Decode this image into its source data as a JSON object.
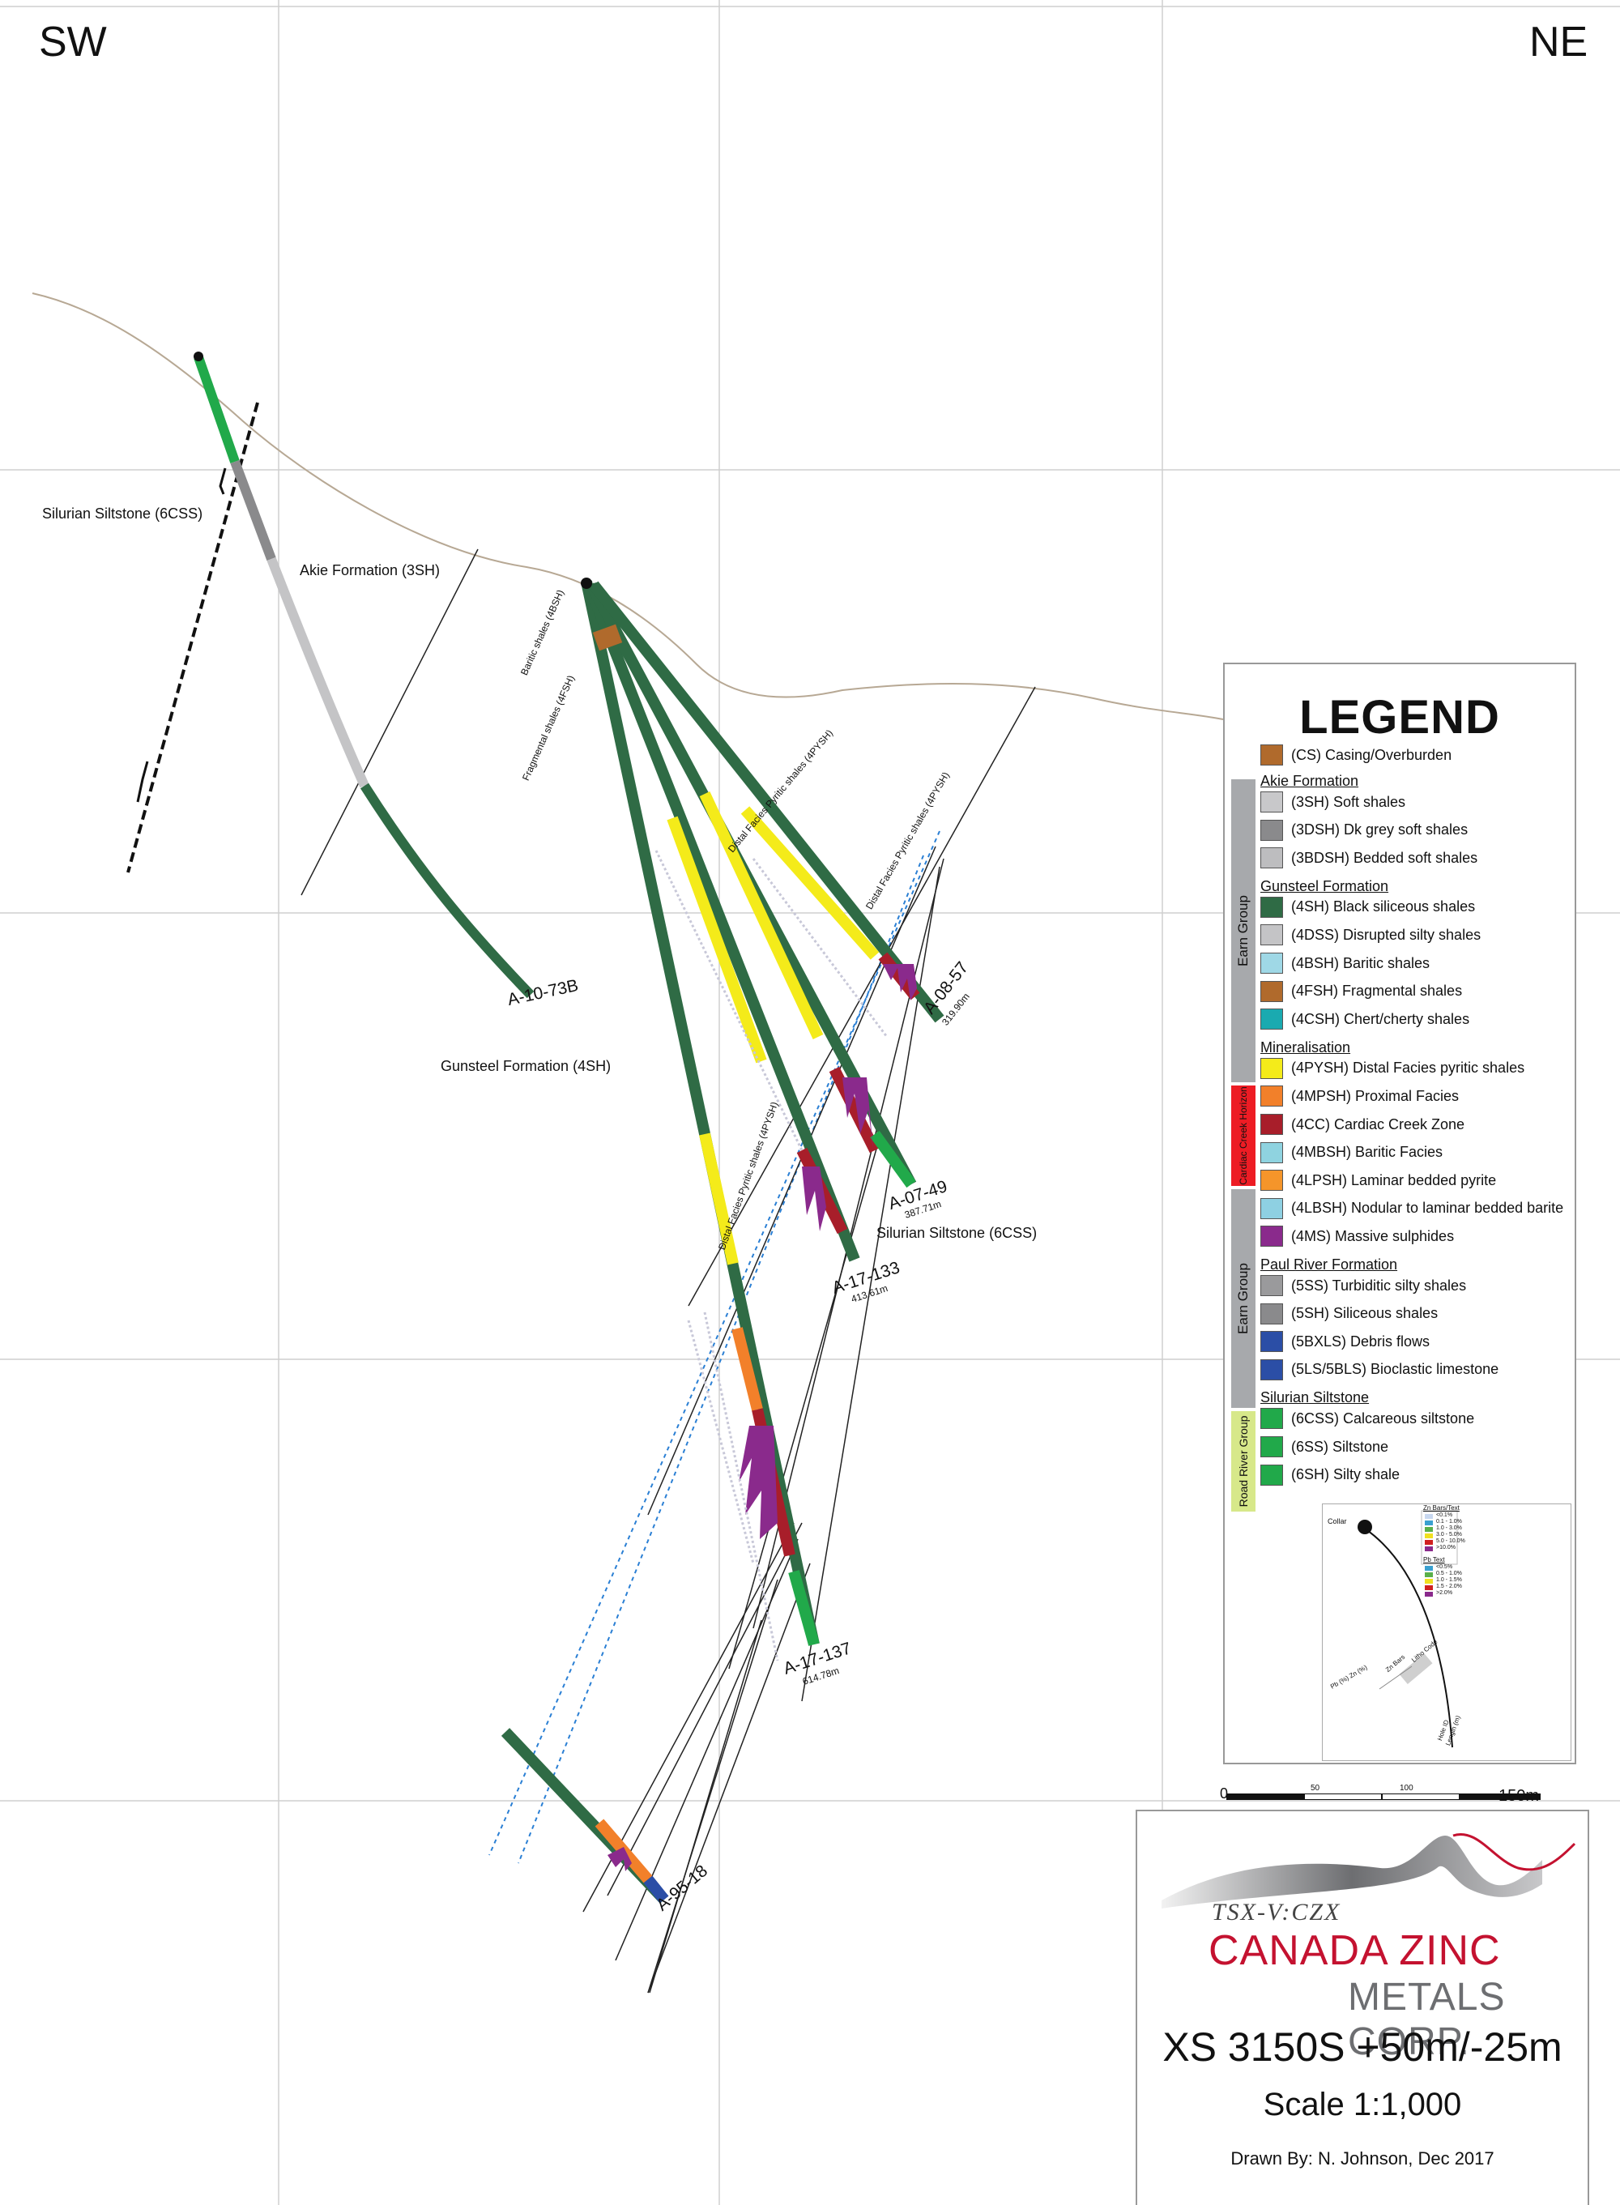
{
  "corners": {
    "left": "SW",
    "right": "NE"
  },
  "labels": {
    "silurian_top": "Silurian Siltstone (6CSS)",
    "akie": "Akie Formation (3SH)",
    "gunsteel": "Gunsteel Formation (4SH)",
    "silurian_right": "Silurian Siltstone (6CSS)",
    "baritic": "Baritic shales (4BSH)",
    "fragmental": "Fragmental shales (4FSH)",
    "distal1": "Distal Facies Pyritic shales (4PYSH)",
    "distal2": "Distal Facies Pyritic shales (4PYSH)",
    "distal3": "Distal Facies Pyritic shales (4PYSH)"
  },
  "holes": [
    {
      "id": "A-10-73B",
      "length": ""
    },
    {
      "id": "A-08-57",
      "length": "319.90m"
    },
    {
      "id": "A-07-49",
      "length": "387.71m"
    },
    {
      "id": "A-17-133",
      "length": "413.61m"
    },
    {
      "id": "A-17-137",
      "length": "614.78m"
    },
    {
      "id": "A-95-18",
      "length": ""
    }
  ],
  "legend": {
    "title": "LEGEND",
    "casing": {
      "label": "(CS) Casing/Overburden",
      "color": "#b06a2c"
    },
    "groups": {
      "earn1": "Earn Group",
      "cardiac": "Cardiac Creek Horizon",
      "earn2": "Earn Group",
      "road": "Road River Group"
    },
    "sections": [
      {
        "heading": "Akie Formation",
        "items": [
          {
            "label": "(3SH) Soft shales",
            "color": "#c8c8ca"
          },
          {
            "label": "(3DSH) Dk grey soft shales",
            "color": "#8a8a8c"
          },
          {
            "label": "(3BDSH) Bedded soft shales",
            "color": "#bdbdbf"
          }
        ]
      },
      {
        "heading": "Gunsteel Formation",
        "items": [
          {
            "label": "(4SH) Black siliceous shales",
            "color": "#2f6b45"
          },
          {
            "label": "(4DSS) Disrupted silty shales",
            "color": "#c4c4c6"
          },
          {
            "label": "(4BSH) Baritic shales",
            "color": "#9fd8e6"
          },
          {
            "label": "(4FSH) Fragmental shales",
            "color": "#b06a2c"
          },
          {
            "label": "(4CSH) Chert/cherty shales",
            "color": "#1aaab0"
          }
        ]
      },
      {
        "heading": "Mineralisation",
        "items": [
          {
            "label": "(4PYSH) Distal Facies pyritic shales",
            "color": "#f4eb1a"
          },
          {
            "label": "(4MPSH) Proximal Facies",
            "color": "#f2802a"
          },
          {
            "label": "(4CC) Cardiac Creek Zone",
            "color": "#a81e2a"
          },
          {
            "label": "(4MBSH) Baritic Facies",
            "color": "#8fd3e0"
          },
          {
            "label": "(4LPSH) Laminar bedded pyrite",
            "color": "#f5952a"
          },
          {
            "label": "(4LBSH) Nodular to laminar bedded barite",
            "color": "#8ed0e2"
          },
          {
            "label": "(4MS) Massive sulphides",
            "color": "#8a2a8c"
          }
        ]
      },
      {
        "heading": "Paul River Formation",
        "items": [
          {
            "label": "(5SS) Turbiditic silty shales",
            "color": "#9a9a9c"
          },
          {
            "label": "(5SH) Siliceous shales",
            "color": "#8a8a8c"
          },
          {
            "label": "(5BXLS) Debris flows",
            "color": "#2b4ea6"
          },
          {
            "label": "(5LS/5BLS) Bioclastic limestone",
            "color": "#2b4ea6"
          }
        ]
      },
      {
        "heading": "Silurian Siltstone",
        "items": [
          {
            "label": "(6CSS) Calcareous siltstone",
            "color": "#21a94a"
          },
          {
            "label": "(6SS) Siltstone",
            "color": "#21a94a"
          },
          {
            "label": "(6SH) Silty shale",
            "color": "#21a94a"
          }
        ]
      }
    ]
  },
  "inset": {
    "collar": "Collar",
    "zn_title": "Zn Bars/Text",
    "zn": [
      "<0.1%",
      "0.1 - 1.0%",
      "1.0 - 3.0%",
      "3.0 - 5.0%",
      "5.0 - 10.0%",
      ">10.0%"
    ],
    "pb_title": "Pb Text",
    "pb": [
      "<0.5%",
      "0.5 - 1.0%",
      "1.0 - 1.5%",
      "1.5 - 2.0%",
      ">2.0%"
    ],
    "zn_colors": [
      "#c8d8f0",
      "#3aa0d0",
      "#5ab04a",
      "#f0e020",
      "#d02020",
      "#8a2a8c"
    ],
    "pb_colors": [
      "#3aa0d0",
      "#5ab04a",
      "#f0e020",
      "#d02020",
      "#8a2a8c"
    ],
    "pb_zn": "Pb (%) Zn (%)",
    "zn_bars": "Zn Bars",
    "litho": "Litho Code",
    "hole_id": "Hole ID",
    "length": "Length (m)"
  },
  "scalebar": {
    "ticks": [
      "0",
      "50",
      "100",
      "150m"
    ]
  },
  "title_block": {
    "exchange": "TSX-V:CZX",
    "company_1": "CANADA ZINC",
    "company_2": "METALS CORP.",
    "section": "XS 3150S +50m/-25m",
    "scale": "Scale 1:1,000",
    "drawn": "Drawn By: N. Johnson, Dec 2017"
  }
}
